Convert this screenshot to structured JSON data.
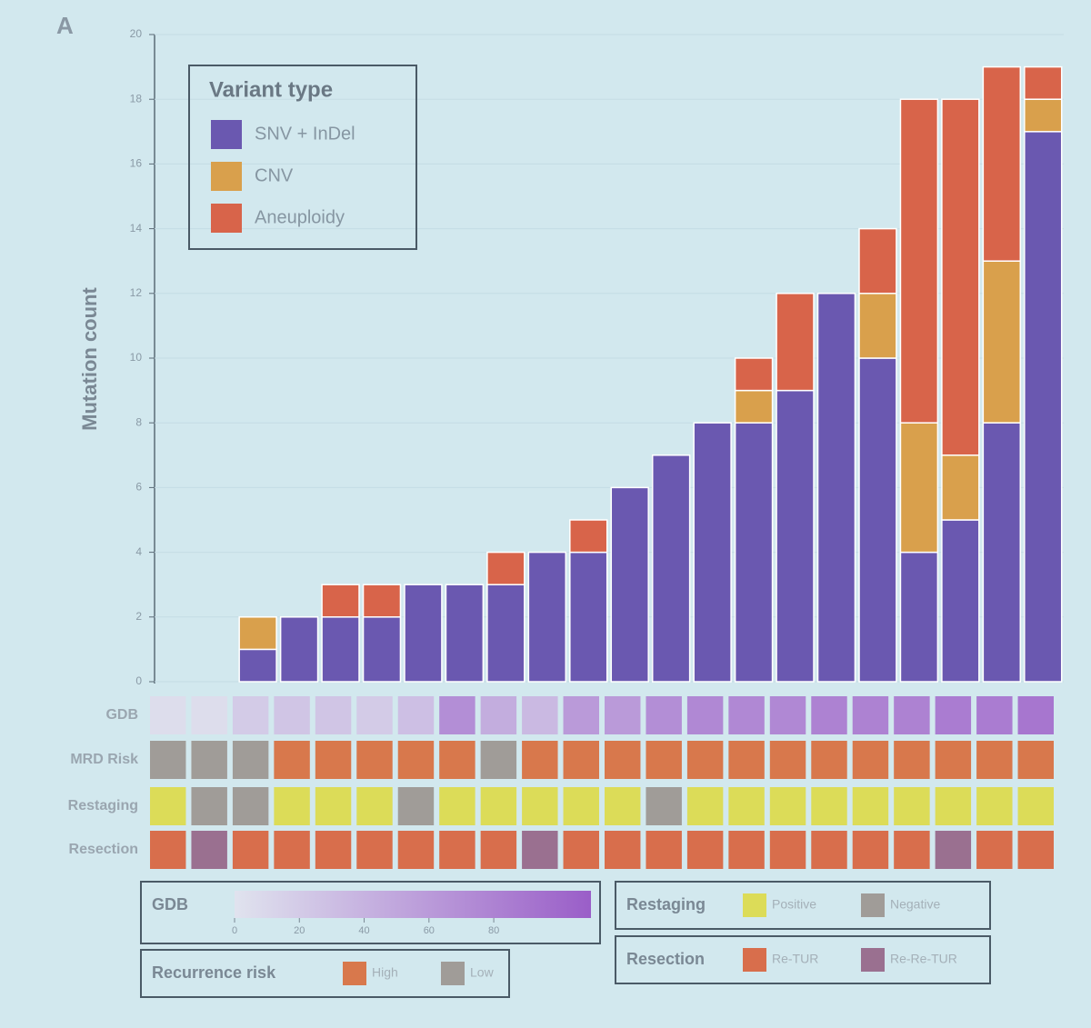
{
  "chart_data": {
    "type": "stacked_bar",
    "panel_label": "A",
    "ylabel": "Mutation count",
    "categories": [
      null,
      null,
      null,
      null,
      null,
      null,
      null,
      null,
      null,
      null,
      null,
      null,
      null,
      null,
      null,
      null,
      null,
      null,
      null,
      null,
      null,
      null
    ],
    "ylim": [
      0,
      20
    ],
    "yticks": [
      0,
      2,
      4,
      6,
      8,
      10,
      12,
      14,
      16,
      18,
      20
    ],
    "grid": true,
    "legend_title": "Variant type",
    "series": [
      {
        "name": "SNV + InDel",
        "color": "#6a58b0",
        "values": [
          0,
          0,
          1,
          2,
          2,
          2,
          3,
          3,
          3,
          4,
          4,
          6,
          7,
          8,
          8,
          9,
          12,
          10,
          4,
          5,
          8,
          17
        ]
      },
      {
        "name": "CNV",
        "color": "#d9a04c",
        "values": [
          0,
          0,
          1,
          0,
          0,
          0,
          0,
          0,
          0,
          0,
          0,
          0,
          0,
          0,
          1,
          0,
          0,
          2,
          4,
          2,
          5,
          1
        ]
      },
      {
        "name": "Aneuploidy",
        "color": "#d8644a",
        "values": [
          0,
          0,
          0,
          0,
          1,
          1,
          0,
          0,
          1,
          0,
          1,
          0,
          0,
          0,
          1,
          3,
          0,
          2,
          10,
          11,
          6,
          1
        ]
      }
    ],
    "tracks": [
      {
        "name": "GDB",
        "legend_title": "GDB",
        "lim": [
          0,
          110
        ],
        "ticks": [
          0,
          20,
          40,
          60,
          80
        ],
        "colors": [
          "#e0e3ee",
          "#9a5ec8"
        ],
        "values": [
          5,
          5,
          20,
          25,
          25,
          20,
          30,
          70,
          45,
          35,
          60,
          60,
          70,
          75,
          75,
          75,
          80,
          80,
          80,
          85,
          85,
          90
        ]
      },
      {
        "name": "MRD Risk",
        "legend_title": "Recurrence risk",
        "levels": [
          {
            "label": "High",
            "color": "#d8784c"
          },
          {
            "label": "Low",
            "color": "#a09c98"
          }
        ],
        "values": [
          "Low",
          "Low",
          "Low",
          "High",
          "High",
          "High",
          "High",
          "High",
          "Low",
          "High",
          "High",
          "High",
          "High",
          "High",
          "High",
          "High",
          "High",
          "High",
          "High",
          "High",
          "High",
          "High"
        ]
      },
      {
        "name": "Restaging",
        "legend_title": "Restaging",
        "levels": [
          {
            "label": "Positive",
            "color": "#dcdc58"
          },
          {
            "label": "Negative",
            "color": "#a09c98"
          }
        ],
        "values": [
          "Positive",
          "Negative",
          "Negative",
          "Positive",
          "Positive",
          "Positive",
          "Negative",
          "Positive",
          "Positive",
          "Positive",
          "Positive",
          "Positive",
          "Negative",
          "Positive",
          "Positive",
          "Positive",
          "Positive",
          "Positive",
          "Positive",
          "Positive",
          "Positive",
          "Positive"
        ]
      },
      {
        "name": "Resection",
        "legend_title": "Resection",
        "levels": [
          {
            "label": "Re-TUR",
            "color": "#d86e4c"
          },
          {
            "label": "Re-Re-TUR",
            "color": "#9a7090"
          }
        ],
        "values": [
          "Re-TUR",
          "Re-Re-TUR",
          "Re-TUR",
          "Re-TUR",
          "Re-TUR",
          "Re-TUR",
          "Re-TUR",
          "Re-TUR",
          "Re-TUR",
          "Re-Re-TUR",
          "Re-TUR",
          "Re-TUR",
          "Re-TUR",
          "Re-TUR",
          "Re-TUR",
          "Re-TUR",
          "Re-TUR",
          "Re-TUR",
          "Re-TUR",
          "Re-Re-TUR",
          "Re-TUR",
          "Re-TUR"
        ]
      }
    ]
  }
}
